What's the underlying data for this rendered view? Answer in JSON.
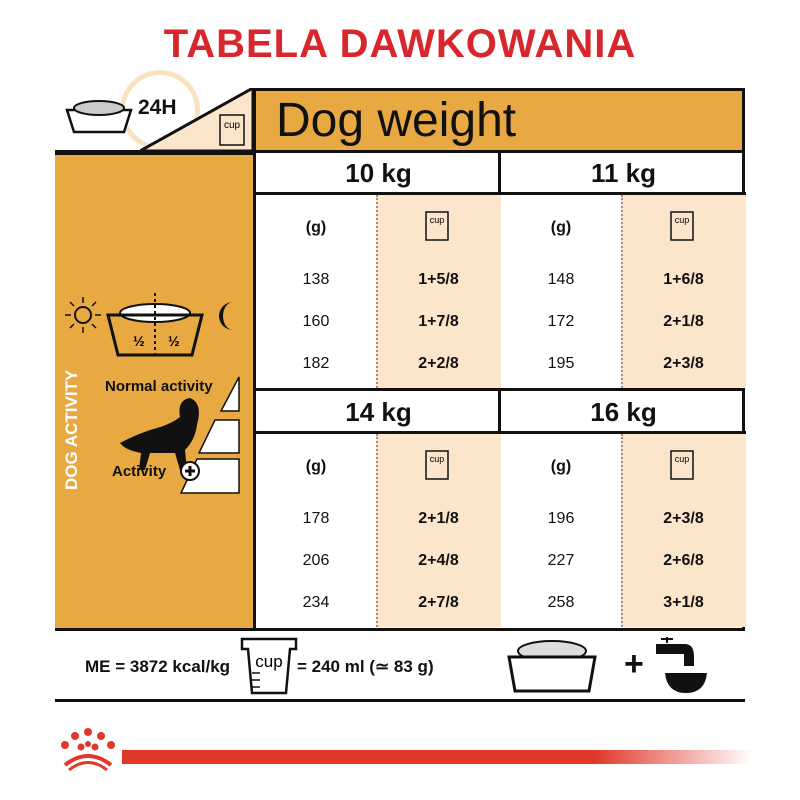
{
  "title": "TABELA DAWKOWANIA",
  "h24": "24H",
  "cup_label": "cup",
  "header": "Dog weight",
  "half": "½",
  "dog_activity": "DOG ACTIVITY",
  "normal_activity": "Normal activity",
  "activity": "Activity",
  "grams_label": "(g)",
  "blocks": [
    {
      "weight": "10 kg",
      "rows": [
        {
          "g": "138",
          "cup": "1+5/8"
        },
        {
          "g": "160",
          "cup": "1+7/8"
        },
        {
          "g": "182",
          "cup": "2+2/8"
        }
      ]
    },
    {
      "weight": "11 kg",
      "rows": [
        {
          "g": "148",
          "cup": "1+6/8"
        },
        {
          "g": "172",
          "cup": "2+1/8"
        },
        {
          "g": "195",
          "cup": "2+3/8"
        }
      ]
    },
    {
      "weight": "14 kg",
      "rows": [
        {
          "g": "178",
          "cup": "2+1/8"
        },
        {
          "g": "206",
          "cup": "2+4/8"
        },
        {
          "g": "234",
          "cup": "2+7/8"
        }
      ]
    },
    {
      "weight": "16 kg",
      "rows": [
        {
          "g": "196",
          "cup": "2+3/8"
        },
        {
          "g": "227",
          "cup": "2+6/8"
        },
        {
          "g": "258",
          "cup": "3+1/8"
        }
      ]
    }
  ],
  "footer": {
    "me": "ME = 3872 kcal/kg",
    "cup_eq": "= 240 ml (≃ 83 g)",
    "plus": "+"
  },
  "colors": {
    "title_red": "#d9262c",
    "orange": "#e8a842",
    "beige": "#fbe6cb"
  }
}
